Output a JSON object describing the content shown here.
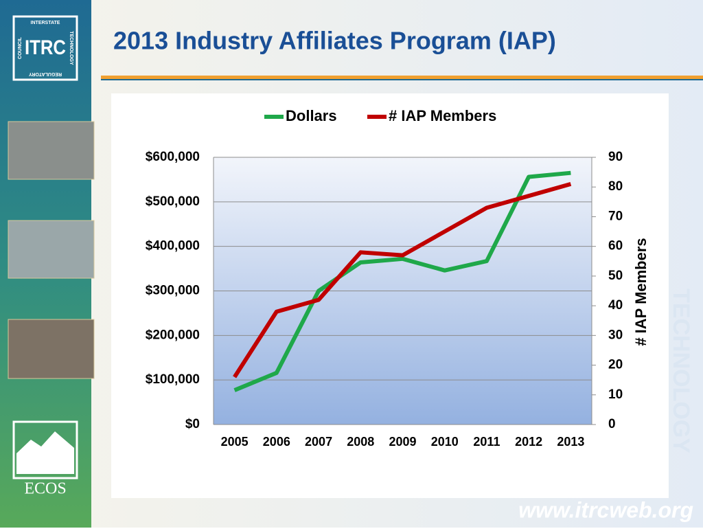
{
  "slide": {
    "logo": {
      "top": "INTERSTATE",
      "right": "TECHNOLOGY",
      "bottom": "REGULATORY",
      "left": "COUNCIL",
      "name": "ITRC"
    },
    "ecos": "ECOS",
    "footer": "www.itrcweb.org",
    "watermark": "TECHNOLOGY"
  },
  "chart_data": {
    "type": "line",
    "title": "2013 Industry Affiliates Program (IAP)",
    "categories": [
      "2005",
      "2006",
      "2007",
      "2008",
      "2009",
      "2010",
      "2011",
      "2012",
      "2013"
    ],
    "series": [
      {
        "name": "Dollars",
        "color": "#1fa84a",
        "values": [
          77000,
          116000,
          300000,
          364000,
          372000,
          346000,
          367000,
          556000,
          565000
        ]
      },
      {
        "name": "# IAP Members",
        "color": "#c00000",
        "axis": "y2",
        "values": [
          16,
          38,
          42,
          58,
          57,
          65,
          73,
          77,
          81
        ]
      }
    ],
    "ylim": [
      0,
      600000
    ],
    "yticks": [
      {
        "value": 0,
        "label": "$0"
      },
      {
        "value": 100000,
        "label": "$100,000"
      },
      {
        "value": 200000,
        "label": "$200,000"
      },
      {
        "value": 300000,
        "label": "$300,000"
      },
      {
        "value": 400000,
        "label": "$400,000"
      },
      {
        "value": 500000,
        "label": "$500,000"
      },
      {
        "value": 600000,
        "label": "$600,000"
      }
    ],
    "y2lim": [
      0,
      90
    ],
    "y2ticks": [
      0,
      10,
      20,
      30,
      40,
      50,
      60,
      70,
      80,
      90
    ],
    "y2label": "# IAP Members",
    "grid": true,
    "legend": "top"
  }
}
